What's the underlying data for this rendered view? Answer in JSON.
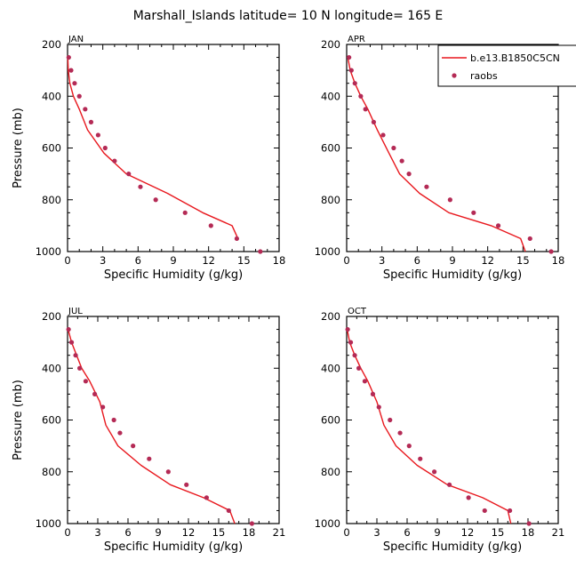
{
  "figure": {
    "title": "Marshall_Islands  latitude= 10 N longitude= 165 E",
    "ylabel": "Pressure (mb)",
    "xlabel": "Specific Humidity (g/kg)"
  },
  "legend": {
    "model_label": "b.e13.B1850C5CN",
    "obs_label": "raobs",
    "placement": "top-right of APR panel"
  },
  "colors": {
    "model_line": "#e8171d",
    "obs_dot": "#b42a55",
    "axis": "#000000"
  },
  "chart_data": [
    {
      "type": "line",
      "panel": "JAN",
      "title": "JAN",
      "xlabel": "Specific Humidity (g/kg)",
      "ylabel": "Pressure (mb)",
      "xlim": [
        0,
        18
      ],
      "ylim": [
        1000,
        200
      ],
      "xticks": [
        0,
        3,
        6,
        9,
        12,
        15,
        18
      ],
      "yticks": [
        200,
        400,
        600,
        800,
        1000
      ],
      "series": [
        {
          "name": "b.e13.B1850C5CN",
          "kind": "line",
          "x": [
            0.02,
            0.06,
            0.2,
            0.5,
            1.0,
            1.7,
            3.1,
            5.0,
            8.5,
            11.5,
            14.0,
            14.5
          ],
          "y": [
            250,
            300,
            350,
            400,
            450,
            530,
            620,
            700,
            775,
            850,
            900,
            950
          ]
        },
        {
          "name": "raobs",
          "kind": "scatter",
          "x": [
            0.1,
            0.3,
            0.6,
            1.0,
            1.5,
            2.0,
            2.6,
            3.2,
            4.0,
            5.2,
            6.2,
            7.5,
            10.0,
            12.2,
            14.4,
            16.4
          ],
          "y": [
            250,
            300,
            350,
            400,
            450,
            500,
            550,
            600,
            650,
            700,
            750,
            800,
            850,
            900,
            950,
            1000
          ]
        }
      ]
    },
    {
      "type": "line",
      "panel": "APR",
      "title": "APR",
      "xlabel": "Specific Humidity (g/kg)",
      "ylabel": "Pressure (mb)",
      "xlim": [
        0,
        18
      ],
      "ylim": [
        1000,
        200
      ],
      "xticks": [
        0,
        3,
        6,
        9,
        12,
        15,
        18
      ],
      "yticks": [
        200,
        400,
        600,
        800,
        1000
      ],
      "series": [
        {
          "name": "b.e13.B1850C5CN",
          "kind": "line",
          "x": [
            0.1,
            0.3,
            0.7,
            1.2,
            1.8,
            2.6,
            3.6,
            4.5,
            6.2,
            8.7,
            12.3,
            14.8,
            15.2
          ],
          "y": [
            250,
            300,
            350,
            400,
            450,
            530,
            620,
            700,
            775,
            850,
            900,
            950,
            1000
          ]
        },
        {
          "name": "raobs",
          "kind": "scatter",
          "x": [
            0.2,
            0.4,
            0.7,
            1.2,
            1.6,
            2.3,
            3.1,
            4.0,
            4.7,
            5.3,
            6.8,
            8.8,
            10.8,
            12.9,
            15.6,
            17.4
          ],
          "y": [
            250,
            300,
            350,
            400,
            450,
            500,
            550,
            600,
            650,
            700,
            750,
            800,
            850,
            900,
            950,
            1000
          ]
        }
      ]
    },
    {
      "type": "line",
      "panel": "JUL",
      "title": "JUL",
      "xlabel": "Specific Humidity (g/kg)",
      "ylabel": "Pressure (mb)",
      "xlim": [
        0,
        21
      ],
      "ylim": [
        1000,
        200
      ],
      "xticks": [
        0,
        3,
        6,
        9,
        12,
        15,
        18,
        21
      ],
      "yticks": [
        200,
        400,
        600,
        800,
        1000
      ],
      "series": [
        {
          "name": "b.e13.B1850C5CN",
          "kind": "line",
          "x": [
            0.05,
            0.4,
            0.9,
            1.4,
            2.2,
            3.2,
            3.8,
            5.0,
            7.3,
            10.2,
            13.5,
            16.1,
            16.6
          ],
          "y": [
            250,
            300,
            350,
            400,
            450,
            530,
            620,
            700,
            775,
            850,
            900,
            950,
            1000
          ]
        },
        {
          "name": "raobs",
          "kind": "scatter",
          "x": [
            0.1,
            0.4,
            0.8,
            1.2,
            1.8,
            2.7,
            3.5,
            4.6,
            5.2,
            6.5,
            8.1,
            10.0,
            11.8,
            13.8,
            16.0,
            18.3
          ],
          "y": [
            250,
            300,
            350,
            400,
            450,
            500,
            550,
            600,
            650,
            700,
            750,
            800,
            850,
            900,
            950,
            1000
          ]
        }
      ]
    },
    {
      "type": "line",
      "panel": "OCT",
      "title": "OCT",
      "xlabel": "Specific Humidity (g/kg)",
      "ylabel": "Pressure (mb)",
      "xlim": [
        0,
        21
      ],
      "ylim": [
        1000,
        200
      ],
      "xticks": [
        0,
        3,
        6,
        9,
        12,
        15,
        18,
        21
      ],
      "yticks": [
        200,
        400,
        600,
        800,
        1000
      ],
      "series": [
        {
          "name": "b.e13.B1850C5CN",
          "kind": "line",
          "x": [
            0.05,
            0.3,
            0.8,
            1.4,
            2.1,
            3.0,
            3.7,
            4.9,
            7.0,
            10.0,
            13.5,
            16.0,
            16.3
          ],
          "y": [
            250,
            300,
            350,
            400,
            450,
            530,
            620,
            700,
            775,
            850,
            900,
            950,
            1000
          ]
        },
        {
          "name": "raobs",
          "kind": "scatter",
          "x": [
            0.1,
            0.4,
            0.8,
            1.2,
            1.8,
            2.6,
            3.2,
            4.3,
            5.3,
            6.2,
            7.3,
            8.7,
            10.2,
            12.1,
            13.7,
            16.2,
            18.1
          ],
          "y": [
            250,
            300,
            350,
            400,
            450,
            500,
            550,
            600,
            650,
            700,
            750,
            800,
            850,
            900,
            950,
            950,
            1000
          ]
        }
      ]
    }
  ]
}
